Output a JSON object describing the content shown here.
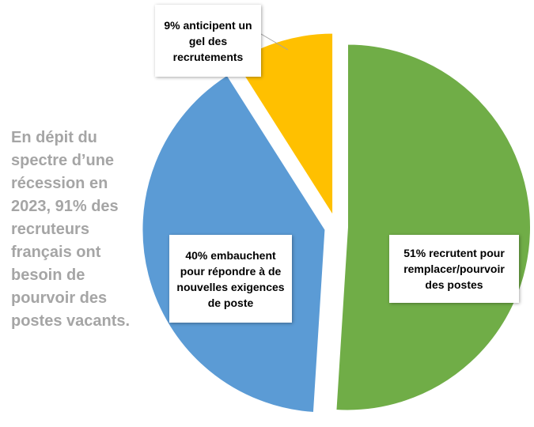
{
  "side_text": "En dépit du spectre d’une récession en 2023, 91% des recruteurs français ont besoin de pourvoir des postes vacants.",
  "chart_data": {
    "type": "pie",
    "title": "",
    "start_angle_deg": 0,
    "direction": "clockwise",
    "exploded": true,
    "slices": [
      {
        "label": "51% recrutent pour remplacer/pourvoir des postes",
        "value": 51,
        "color": "#70ad47"
      },
      {
        "label": "40% embauchent pour répondre à de nouvelles exigences de poste",
        "value": 40,
        "color": "#5b9bd5"
      },
      {
        "label": "9% anticipent un gel des recrutements",
        "value": 9,
        "color": "#ffc000"
      }
    ]
  },
  "colors": {
    "side_text": "#a5a5a5",
    "leader_line": "#a5a5a5"
  }
}
